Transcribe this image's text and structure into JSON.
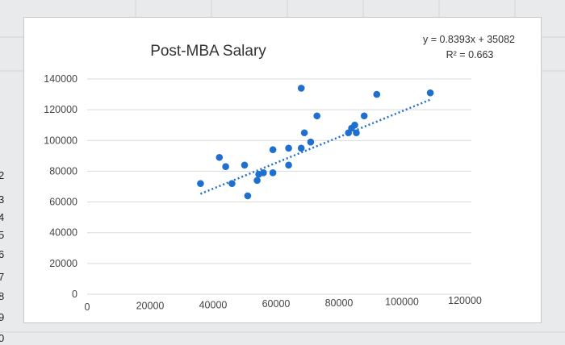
{
  "spreadsheet": {
    "row_numbers": [
      "2",
      "3",
      "4",
      "5",
      "6",
      "7",
      "8",
      "9",
      "0"
    ]
  },
  "chart_data": {
    "type": "scatter",
    "title": "Post-MBA Salary",
    "xlabel": "",
    "ylabel": "",
    "xlim": [
      0,
      120000
    ],
    "ylim": [
      0,
      140000
    ],
    "x_ticks": [
      "0",
      "20000",
      "40000",
      "60000",
      "80000",
      "100000",
      "120000"
    ],
    "y_ticks": [
      "0",
      "20000",
      "40000",
      "60000",
      "80000",
      "100000",
      "120000",
      "140000"
    ],
    "grid": true,
    "series": [
      {
        "color": "#1f6fd1",
        "points": [
          {
            "x": 36000,
            "y": 72000
          },
          {
            "x": 42000,
            "y": 89000
          },
          {
            "x": 44000,
            "y": 83000
          },
          {
            "x": 46000,
            "y": 72000
          },
          {
            "x": 50000,
            "y": 84000
          },
          {
            "x": 51000,
            "y": 64000
          },
          {
            "x": 54000,
            "y": 74000
          },
          {
            "x": 54500,
            "y": 78000
          },
          {
            "x": 56000,
            "y": 79000
          },
          {
            "x": 59000,
            "y": 94000
          },
          {
            "x": 59000,
            "y": 79000
          },
          {
            "x": 64000,
            "y": 84000
          },
          {
            "x": 64000,
            "y": 95000
          },
          {
            "x": 68000,
            "y": 134000
          },
          {
            "x": 68000,
            "y": 95000
          },
          {
            "x": 69000,
            "y": 105000
          },
          {
            "x": 71000,
            "y": 99000
          },
          {
            "x": 73000,
            "y": 116000
          },
          {
            "x": 83000,
            "y": 105000
          },
          {
            "x": 84000,
            "y": 108000
          },
          {
            "x": 85000,
            "y": 110000
          },
          {
            "x": 85500,
            "y": 105000
          },
          {
            "x": 88000,
            "y": 116000
          },
          {
            "x": 92000,
            "y": 130000
          },
          {
            "x": 109000,
            "y": 131000
          }
        ]
      }
    ],
    "trendline": {
      "type": "linear",
      "slope": 0.8393,
      "intercept": 35082,
      "x_range": [
        36000,
        109000
      ],
      "color": "#1f6fd1",
      "style": "dotted",
      "equation_label": "y = 0.8393x + 35082",
      "r2_label": "R² = 0.663"
    }
  }
}
